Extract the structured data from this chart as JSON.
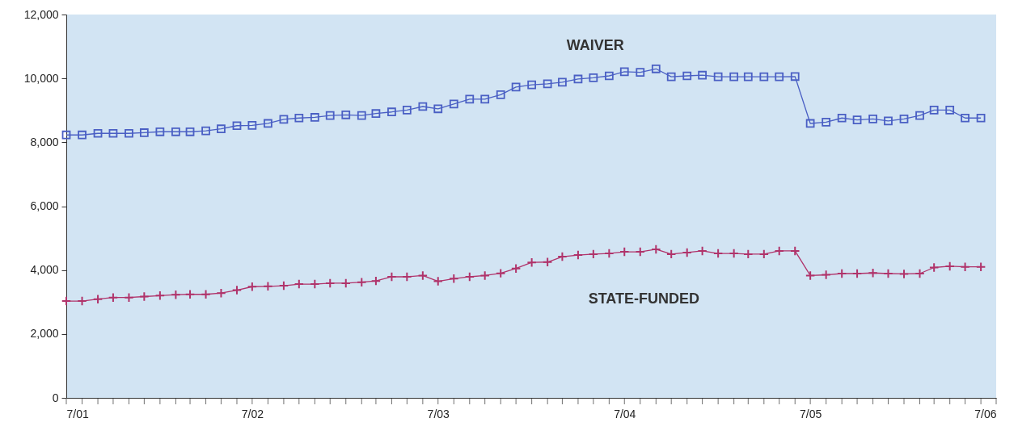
{
  "chart_data": {
    "type": "line",
    "x": [
      "2001-07",
      "2001-08",
      "2001-09",
      "2001-10",
      "2001-11",
      "2001-12",
      "2002-01",
      "2002-02",
      "2002-03",
      "2002-04",
      "2002-05",
      "2002-06",
      "2002-07",
      "2002-08",
      "2002-09",
      "2002-10",
      "2002-11",
      "2002-12",
      "2003-01",
      "2003-02",
      "2003-03",
      "2003-04",
      "2003-05",
      "2003-06",
      "2003-07",
      "2003-08",
      "2003-09",
      "2003-10",
      "2003-11",
      "2003-12",
      "2004-01",
      "2004-02",
      "2004-03",
      "2004-04",
      "2004-05",
      "2004-06",
      "2004-07",
      "2004-08",
      "2004-09",
      "2004-10",
      "2004-11",
      "2004-12",
      "2005-01",
      "2005-02",
      "2005-03",
      "2005-04",
      "2005-05",
      "2005-06",
      "2005-07",
      "2005-08",
      "2005-09",
      "2005-10",
      "2005-11",
      "2005-12",
      "2006-01",
      "2006-02",
      "2006-03",
      "2006-04",
      "2006-05",
      "2006-06"
    ],
    "series": [
      {
        "name": "WAIVER",
        "color": "#4a5fc4",
        "marker": "square",
        "values": [
          8230,
          8230,
          8280,
          8280,
          8280,
          8300,
          8330,
          8330,
          8330,
          8360,
          8420,
          8520,
          8530,
          8590,
          8720,
          8760,
          8780,
          8840,
          8860,
          8840,
          8900,
          8950,
          9010,
          9120,
          9050,
          9200,
          9350,
          9350,
          9490,
          9730,
          9800,
          9830,
          9880,
          9980,
          10020,
          10080,
          10210,
          10190,
          10300,
          10050,
          10080,
          10100,
          10050,
          10050,
          10050,
          10050,
          10050,
          10060,
          8590,
          8630,
          8760,
          8700,
          8730,
          8670,
          8730,
          8840,
          9010,
          9010,
          8760,
          8760
        ]
      },
      {
        "name": "STATE-FUNDED",
        "color": "#b0336a",
        "marker": "cross",
        "values": [
          3030,
          3030,
          3090,
          3140,
          3140,
          3170,
          3200,
          3230,
          3240,
          3240,
          3280,
          3370,
          3480,
          3490,
          3510,
          3560,
          3560,
          3590,
          3590,
          3620,
          3660,
          3790,
          3790,
          3830,
          3650,
          3730,
          3790,
          3830,
          3900,
          4050,
          4240,
          4250,
          4420,
          4470,
          4500,
          4520,
          4570,
          4570,
          4650,
          4500,
          4550,
          4600,
          4520,
          4520,
          4500,
          4500,
          4600,
          4600,
          3830,
          3850,
          3890,
          3890,
          3910,
          3890,
          3880,
          3890,
          4080,
          4120,
          4100,
          4100
        ]
      }
    ],
    "xlim": [
      "2001-07",
      "2006-07"
    ],
    "xticks": [
      {
        "value": "2001-07",
        "label": "7/01"
      },
      {
        "value": "2001-08",
        "label": null
      },
      {
        "value": "2001-09",
        "label": null
      },
      {
        "value": "2001-10",
        "label": null
      },
      {
        "value": "2001-11",
        "label": null
      },
      {
        "value": "2001-12",
        "label": null
      },
      {
        "value": "2002-01",
        "label": null
      },
      {
        "value": "2002-02",
        "label": null
      },
      {
        "value": "2002-03",
        "label": null
      },
      {
        "value": "2002-04",
        "label": null
      },
      {
        "value": "2002-05",
        "label": null
      },
      {
        "value": "2002-06",
        "label": null
      },
      {
        "value": "2002-07",
        "label": "7/02"
      },
      {
        "value": "2002-08",
        "label": null
      },
      {
        "value": "2002-09",
        "label": null
      },
      {
        "value": "2002-10",
        "label": null
      },
      {
        "value": "2002-11",
        "label": null
      },
      {
        "value": "2002-12",
        "label": null
      },
      {
        "value": "2003-01",
        "label": null
      },
      {
        "value": "2003-02",
        "label": null
      },
      {
        "value": "2003-03",
        "label": null
      },
      {
        "value": "2003-04",
        "label": null
      },
      {
        "value": "2003-05",
        "label": null
      },
      {
        "value": "2003-06",
        "label": null
      },
      {
        "value": "2003-07",
        "label": "7/03"
      },
      {
        "value": "2003-08",
        "label": null
      },
      {
        "value": "2003-09",
        "label": null
      },
      {
        "value": "2003-10",
        "label": null
      },
      {
        "value": "2003-11",
        "label": null
      },
      {
        "value": "2003-12",
        "label": null
      },
      {
        "value": "2004-01",
        "label": null
      },
      {
        "value": "2004-02",
        "label": null
      },
      {
        "value": "2004-03",
        "label": null
      },
      {
        "value": "2004-04",
        "label": null
      },
      {
        "value": "2004-05",
        "label": null
      },
      {
        "value": "2004-06",
        "label": null
      },
      {
        "value": "2004-07",
        "label": "7/04"
      },
      {
        "value": "2004-08",
        "label": null
      },
      {
        "value": "2004-09",
        "label": null
      },
      {
        "value": "2004-10",
        "label": null
      },
      {
        "value": "2004-11",
        "label": null
      },
      {
        "value": "2004-12",
        "label": null
      },
      {
        "value": "2005-01",
        "label": null
      },
      {
        "value": "2005-02",
        "label": null
      },
      {
        "value": "2005-03",
        "label": null
      },
      {
        "value": "2005-04",
        "label": null
      },
      {
        "value": "2005-05",
        "label": null
      },
      {
        "value": "2005-06",
        "label": null
      },
      {
        "value": "2005-07",
        "label": "7/05"
      },
      {
        "value": "2005-08",
        "label": null
      },
      {
        "value": "2005-09",
        "label": null
      },
      {
        "value": "2005-10",
        "label": null
      },
      {
        "value": "2005-11",
        "label": null
      },
      {
        "value": "2005-12",
        "label": null
      },
      {
        "value": "2006-01",
        "label": null
      },
      {
        "value": "2006-02",
        "label": null
      },
      {
        "value": "2006-03",
        "label": null
      },
      {
        "value": "2006-04",
        "label": null
      },
      {
        "value": "2006-05",
        "label": null
      },
      {
        "value": "2006-06",
        "label": null
      },
      {
        "value": "2006-07",
        "label": "7/06"
      }
    ],
    "ylim": [
      0,
      12000
    ],
    "yticks": [
      0,
      {
        "value": 2000,
        "label": "2,000"
      },
      {
        "value": 4000,
        "label": "4,000"
      },
      {
        "value": 6000,
        "label": "6,000"
      },
      {
        "value": 8000,
        "label": "8,000"
      },
      {
        "value": 10000,
        "label": "10,000"
      },
      {
        "value": 12000,
        "label": "12,000"
      }
    ],
    "grid": false,
    "legend": false
  }
}
